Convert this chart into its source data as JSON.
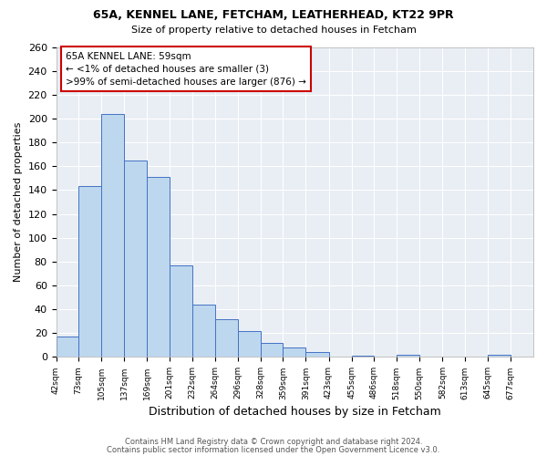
{
  "title1": "65A, KENNEL LANE, FETCHAM, LEATHERHEAD, KT22 9PR",
  "title2": "Size of property relative to detached houses in Fetcham",
  "xlabel": "Distribution of detached houses by size in Fetcham",
  "ylabel": "Number of detached properties",
  "bin_labels": [
    "42sqm",
    "73sqm",
    "105sqm",
    "137sqm",
    "169sqm",
    "201sqm",
    "232sqm",
    "264sqm",
    "296sqm",
    "328sqm",
    "359sqm",
    "391sqm",
    "423sqm",
    "455sqm",
    "486sqm",
    "518sqm",
    "550sqm",
    "582sqm",
    "613sqm",
    "645sqm",
    "677sqm"
  ],
  "bar_heights": [
    17,
    143,
    204,
    165,
    151,
    77,
    44,
    32,
    22,
    12,
    8,
    4,
    0,
    1,
    0,
    2,
    0,
    0,
    0,
    2,
    0
  ],
  "bar_color": "#bdd7ee",
  "bar_edge_color": "#4472c4",
  "annotation_title": "65A KENNEL LANE: 59sqm",
  "annotation_line1": "← <1% of detached houses are smaller (3)",
  "annotation_line2": ">99% of semi-detached houses are larger (876) →",
  "annotation_box_color": "#ffffff",
  "annotation_box_edge": "#cc0000",
  "ylim": [
    0,
    260
  ],
  "yticks": [
    0,
    20,
    40,
    60,
    80,
    100,
    120,
    140,
    160,
    180,
    200,
    220,
    240,
    260
  ],
  "footer1": "Contains HM Land Registry data © Crown copyright and database right 2024.",
  "footer2": "Contains public sector information licensed under the Open Government Licence v3.0.",
  "bg_color": "#e8eef4"
}
